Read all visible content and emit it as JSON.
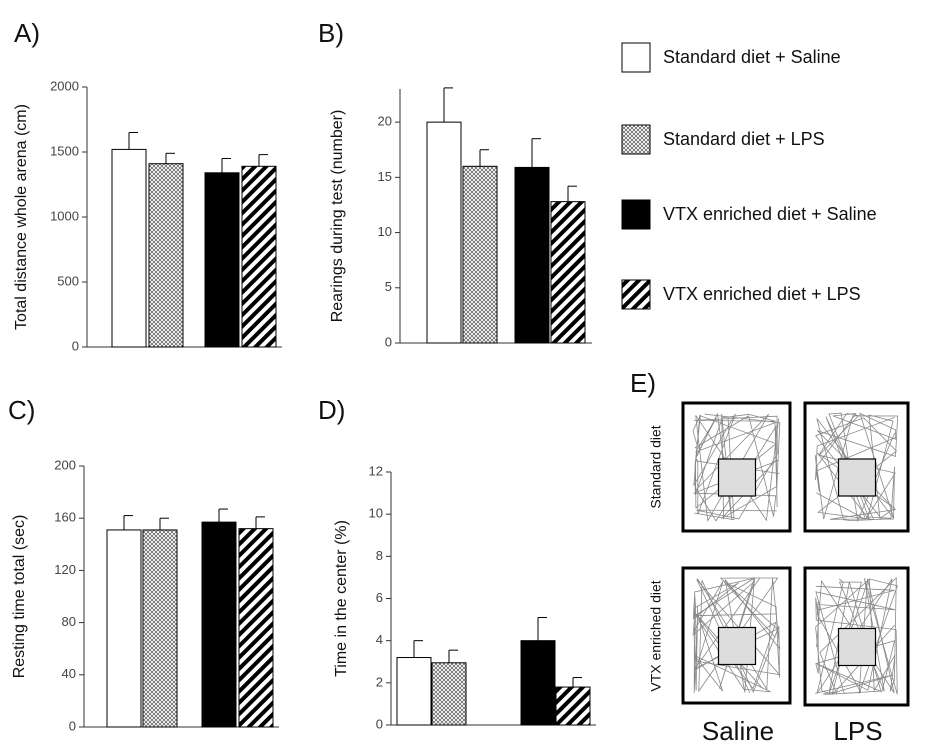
{
  "legend": [
    {
      "name": "Standard diet + Saline",
      "style": "white"
    },
    {
      "name": "Standard diet + LPS",
      "style": "dotted"
    },
    {
      "name": "VTX enriched diet + Saline",
      "style": "black"
    },
    {
      "name": "VTX enriched diet + LPS",
      "style": "striped"
    }
  ],
  "chart_data": [
    {
      "type": "bar",
      "panel": "A)",
      "ylabel": "Total distance whole arena (cm)",
      "ylim": [
        0,
        2000
      ],
      "yticks": [
        0,
        500,
        1000,
        1500,
        2000
      ],
      "values": [
        1520,
        1410,
        1340,
        1390
      ],
      "errors": [
        130,
        80,
        110,
        90
      ]
    },
    {
      "type": "bar",
      "panel": "B)",
      "ylabel": "Rearings during test (number)",
      "ylim": [
        0,
        23
      ],
      "yticks": [
        0,
        5,
        10,
        15,
        20
      ],
      "values": [
        20,
        16,
        15.9,
        12.8
      ],
      "errors": [
        3.1,
        1.5,
        2.6,
        1.4
      ]
    },
    {
      "type": "bar",
      "panel": "C)",
      "ylabel": "Resting time total (sec)",
      "ylim": [
        0,
        200
      ],
      "yticks": [
        0,
        40,
        80,
        120,
        160,
        200
      ],
      "values": [
        151,
        151,
        157,
        152
      ],
      "errors": [
        11,
        9,
        10,
        9
      ]
    },
    {
      "type": "bar",
      "panel": "D)",
      "ylabel": "Time in the center  (%)",
      "ylim": [
        0,
        12
      ],
      "yticks": [
        0,
        2,
        4,
        6,
        8,
        10,
        12
      ],
      "values": [
        3.2,
        2.95,
        4.0,
        1.8
      ],
      "errors": [
        0.8,
        0.6,
        1.1,
        0.45
      ]
    }
  ],
  "panel_e": {
    "label": "E)",
    "rows": [
      "Standard diet",
      "VTX enriched diet"
    ],
    "columns": [
      "Saline",
      "LPS"
    ]
  }
}
